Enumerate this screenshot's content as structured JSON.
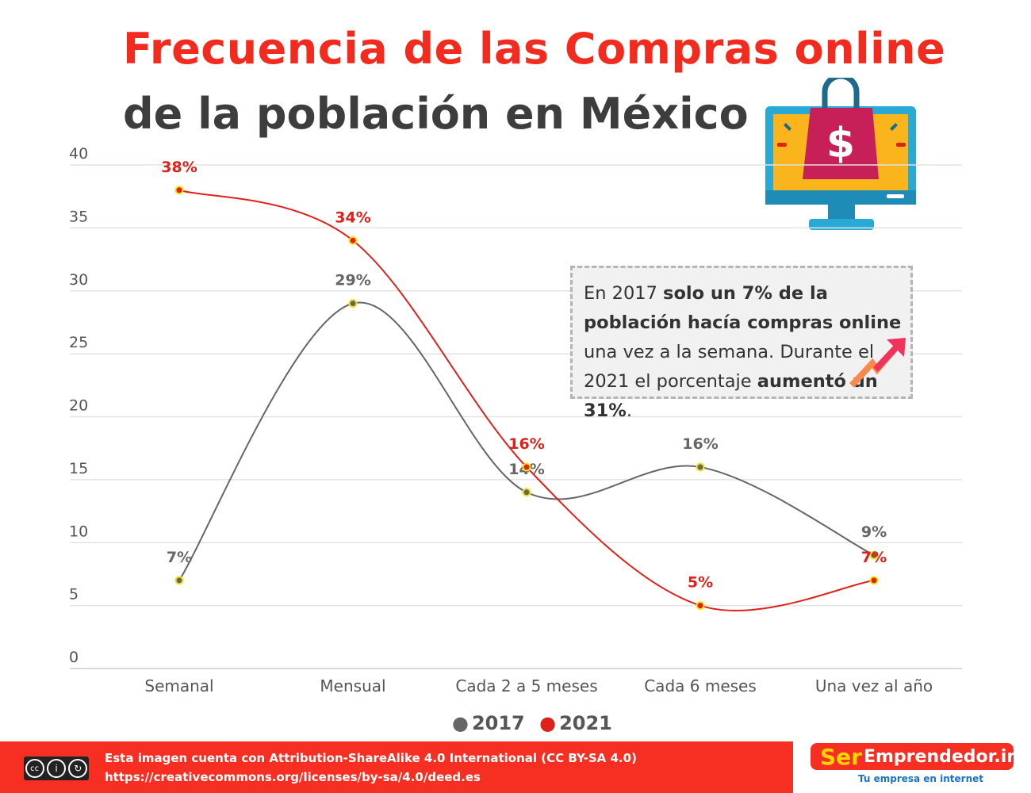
{
  "title_line1": "Frecuencia de las Compras online",
  "title_line2": "de la población en México",
  "note": {
    "p1": "En 2017 ",
    "b1": "solo un 7% de la población hacía compras online",
    "p2": " una vez a la semana. Durante el 2021 el porcentaje ",
    "b2": "aumentó un 31%",
    "p3": "."
  },
  "footer": {
    "line1": "Esta imagen cuenta con Attribution-ShareAlike 4.0 International (CC BY-SA 4.0)",
    "line2": "https://creativecommons.org/licenses/by-sa/4.0/deed.es",
    "cc_badge": "cc by sa"
  },
  "logo": {
    "ser": "Ser",
    "rest": "Emprendedor.info",
    "tagline": "Tu empresa en internet"
  },
  "chart_data": {
    "type": "line",
    "categories": [
      "Semanal",
      "Mensual",
      "Cada 2 a 5 meses",
      "Cada 6 meses",
      "Una vez al año"
    ],
    "series": [
      {
        "name": "2017",
        "color": "#666666",
        "values": [
          7,
          29,
          14,
          16,
          9
        ],
        "labels": [
          "7%",
          "29%",
          "14%",
          "16%",
          "9%"
        ]
      },
      {
        "name": "2021",
        "color": "#e0211b",
        "values": [
          38,
          34,
          16,
          5,
          7
        ],
        "labels": [
          "38%",
          "34%",
          "16%",
          "5%",
          "7%"
        ]
      }
    ],
    "yticks": [
      0,
      5,
      10,
      15,
      20,
      25,
      30,
      35,
      40
    ],
    "ylim": [
      0,
      40
    ],
    "grid": true,
    "legend": "bottom-center"
  }
}
